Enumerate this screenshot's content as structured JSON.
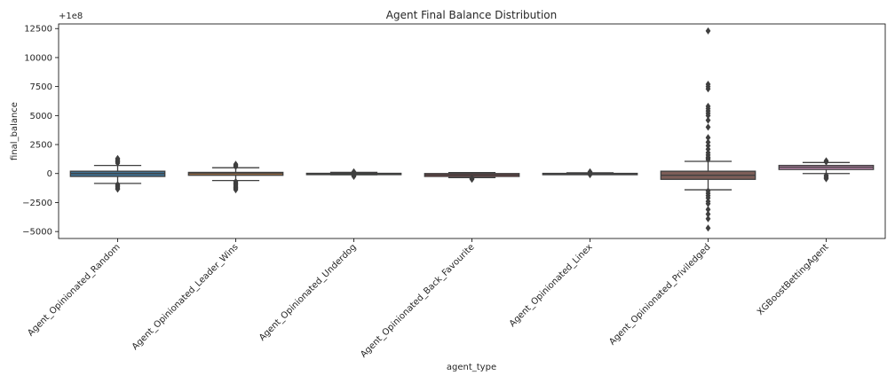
{
  "chart_data": {
    "type": "box",
    "title": "Agent Final Balance Distribution",
    "xlabel": "agent_type",
    "ylabel": "final_balance",
    "offset_label": "+1e8",
    "ylim": [
      -5600,
      12900
    ],
    "yticks": [
      -5000,
      -2500,
      0,
      2500,
      5000,
      7500,
      10000,
      12500
    ],
    "ytick_labels": [
      "−5000",
      "−2500",
      "0",
      "2500",
      "5000",
      "7500",
      "10000",
      "12500"
    ],
    "grid": false,
    "categories": [
      "Agent_Opinionated_Random",
      "Agent_Opinionated_Leader_Wins",
      "Agent_Opinionated_Underdog",
      "Agent_Opinionated_Back_Favourite",
      "Agent_Opinionated_Linex",
      "Agent_Opinionated_Priviledged",
      "XGBoostBettingAgent"
    ],
    "boxes": [
      {
        "color": "#3274a1",
        "q1": -250,
        "median": 0,
        "q3": 200,
        "whisker_low": -850,
        "whisker_high": 700,
        "outliers": [
          900,
          1000,
          1100,
          1200,
          1300,
          -950,
          -1050,
          -1150,
          -1250,
          -1350
        ]
      },
      {
        "color": "#e1812c",
        "q1": -150,
        "median": 0,
        "q3": 100,
        "whisker_low": -600,
        "whisker_high": 500,
        "outliers": [
          600,
          700,
          800,
          -700,
          -800,
          -900,
          -1000,
          -1100,
          -1200,
          -1300,
          -1400
        ]
      },
      {
        "color": "#3a923a",
        "q1": -20,
        "median": 0,
        "q3": 20,
        "whisker_low": -100,
        "whisker_high": 100,
        "outliers": [
          150,
          -150,
          -200,
          -250
        ]
      },
      {
        "color": "#c03d3e",
        "q1": -250,
        "median": -120,
        "q3": 0,
        "whisker_low": -350,
        "whisker_high": 80,
        "outliers": [
          -400,
          -450,
          -500
        ]
      },
      {
        "color": "#9372b2",
        "q1": -15,
        "median": 0,
        "q3": 15,
        "whisker_low": -60,
        "whisker_high": 60,
        "outliers": [
          100,
          150,
          -100
        ]
      },
      {
        "color": "#845b53",
        "q1": -500,
        "median": -150,
        "q3": 200,
        "whisker_low": -1400,
        "whisker_high": 1050,
        "outliers": [
          12300,
          7700,
          7500,
          7300,
          5800,
          5600,
          5400,
          5200,
          5000,
          4600,
          4000,
          3100,
          2700,
          2400,
          2100,
          1800,
          1600,
          1400,
          1300,
          1200,
          -1500,
          -1700,
          -1900,
          -2100,
          -2400,
          -2600,
          -3100,
          -3500,
          -3900,
          -4700
        ]
      },
      {
        "color": "#d684bd",
        "q1": 350,
        "median": 550,
        "q3": 700,
        "whisker_low": 0,
        "whisker_high": 950,
        "outliers": [
          1000,
          1100,
          -150,
          -250,
          -350,
          -450
        ]
      }
    ]
  }
}
